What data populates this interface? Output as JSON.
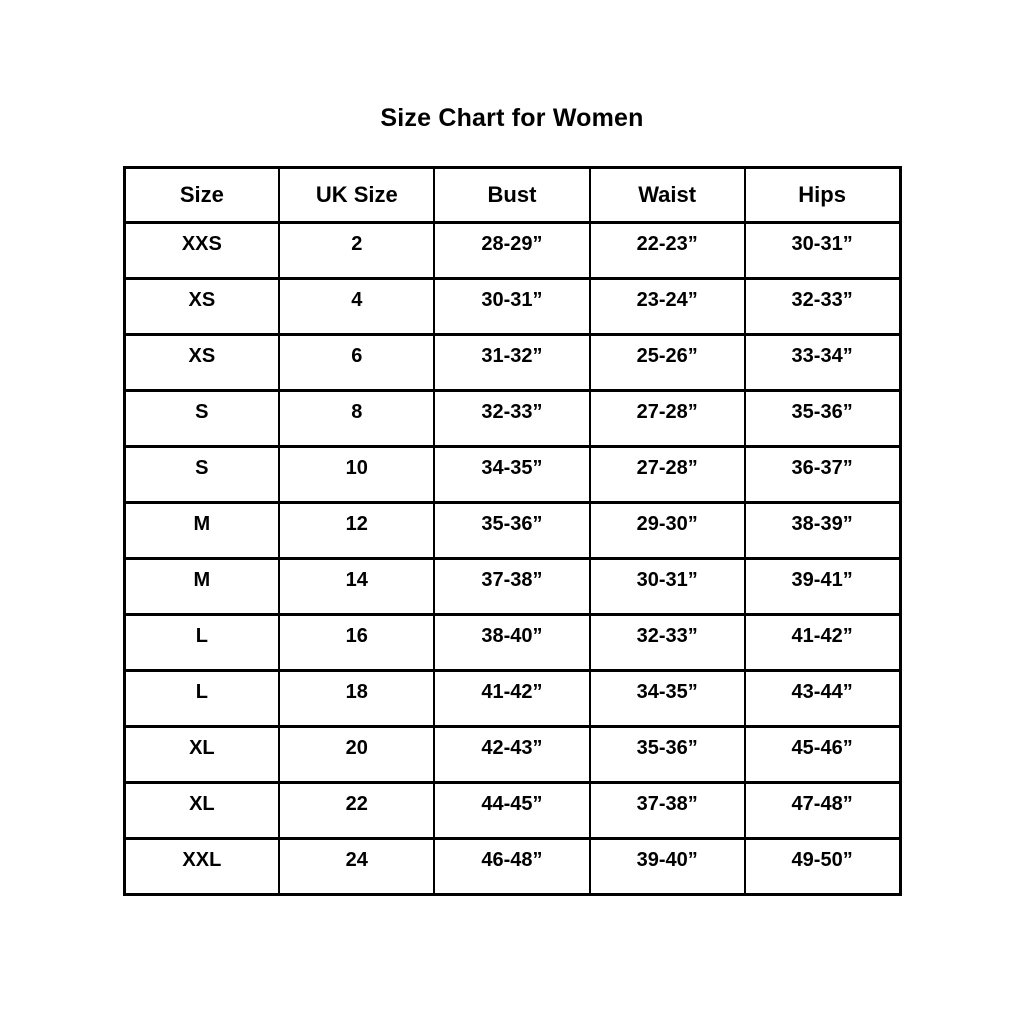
{
  "page": {
    "title": "Size Chart for Women"
  },
  "colors": {
    "background": "#ffffff",
    "text": "#000000",
    "border": "#000000"
  },
  "chart_data": {
    "type": "table",
    "title": "Size Chart for Women",
    "columns": [
      "Size",
      "UK Size",
      "Bust",
      "Waist",
      "Hips"
    ],
    "rows": [
      [
        "XXS",
        "2",
        "28-29”",
        "22-23”",
        "30-31”"
      ],
      [
        "XS",
        "4",
        "30-31”",
        "23-24”",
        "32-33”"
      ],
      [
        "XS",
        "6",
        "31-32”",
        "25-26”",
        "33-34”"
      ],
      [
        "S",
        "8",
        "32-33”",
        "27-28”",
        "35-36”"
      ],
      [
        "S",
        "10",
        "34-35”",
        "27-28”",
        "36-37”"
      ],
      [
        "M",
        "12",
        "35-36”",
        "29-30”",
        "38-39”"
      ],
      [
        "M",
        "14",
        "37-38”",
        "30-31”",
        "39-41”"
      ],
      [
        "L",
        "16",
        "38-40”",
        "32-33”",
        "41-42”"
      ],
      [
        "L",
        "18",
        "41-42”",
        "34-35”",
        "43-44”"
      ],
      [
        "XL",
        "20",
        "42-43”",
        "35-36”",
        "45-46”"
      ],
      [
        "XL",
        "22",
        "44-45”",
        "37-38”",
        "47-48”"
      ],
      [
        "XXL",
        "24",
        "46-48”",
        "39-40”",
        "49-50”"
      ]
    ],
    "layout": {
      "legend": "none",
      "grid": "full-borders",
      "column_count": 5,
      "row_count": 12
    }
  }
}
